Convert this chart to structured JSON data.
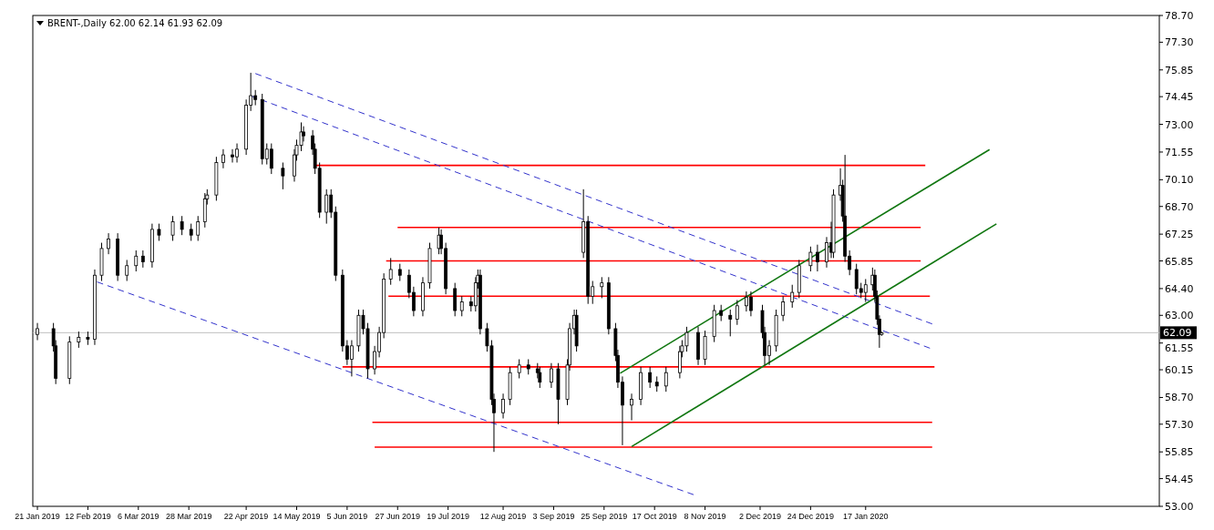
{
  "chart_data": {
    "type": "candlestick",
    "title": "BRENT-,Daily  62.00 62.14 61.93 62.09",
    "color": "#000000",
    "x": [
      "2019-01-21",
      "2019-01-28",
      "2019-01-29",
      "2019-02-04",
      "2019-02-08",
      "2019-02-12",
      "2019-02-15",
      "2019-02-18",
      "2019-02-21",
      "2019-02-25",
      "2019-03-01",
      "2019-03-05",
      "2019-03-08",
      "2019-03-12",
      "2019-03-15",
      "2019-03-21",
      "2019-03-25",
      "2019-03-29",
      "2019-04-01",
      "2019-04-04",
      "2019-04-05",
      "2019-04-09",
      "2019-04-12",
      "2019-04-16",
      "2019-04-18",
      "2019-04-22",
      "2019-04-24",
      "2019-04-26",
      "2019-04-29",
      "2019-05-01",
      "2019-05-03",
      "2019-05-08",
      "2019-05-13",
      "2019-05-14",
      "2019-05-16",
      "2019-05-17",
      "2019-05-21",
      "2019-05-22",
      "2019-05-24",
      "2019-05-27",
      "2019-05-29",
      "2019-05-31",
      "2019-06-03",
      "2019-06-05",
      "2019-06-07",
      "2019-06-10",
      "2019-06-12",
      "2019-06-14",
      "2019-06-17",
      "2019-06-19",
      "2019-06-21",
      "2019-06-24",
      "2019-06-28",
      "2019-07-02",
      "2019-07-04",
      "2019-07-08",
      "2019-07-11",
      "2019-07-15",
      "2019-07-16",
      "2019-07-18",
      "2019-07-22",
      "2019-07-25",
      "2019-07-29",
      "2019-07-31",
      "2019-08-01",
      "2019-08-02",
      "2019-08-05",
      "2019-08-07",
      "2019-08-08",
      "2019-08-12",
      "2019-08-15",
      "2019-08-19",
      "2019-08-23",
      "2019-08-27",
      "2019-08-28",
      "2019-09-02",
      "2019-09-05",
      "2019-09-09",
      "2019-09-10",
      "2019-09-12",
      "2019-09-13",
      "2019-09-16",
      "2019-09-18",
      "2019-09-20",
      "2019-09-24",
      "2019-09-27",
      "2019-09-30",
      "2019-10-01",
      "2019-10-03",
      "2019-10-07",
      "2019-10-11",
      "2019-10-15",
      "2019-10-18",
      "2019-10-22",
      "2019-10-28",
      "2019-10-29",
      "2019-10-31",
      "2019-11-05",
      "2019-11-08",
      "2019-11-12",
      "2019-11-15",
      "2019-11-19",
      "2019-11-22",
      "2019-11-26",
      "2019-11-28",
      "2019-12-03",
      "2019-12-04",
      "2019-12-06",
      "2019-12-09",
      "2019-12-12",
      "2019-12-16",
      "2019-12-19",
      "2019-12-24",
      "2019-12-27",
      "2019-12-31",
      "2020-01-02",
      "2020-01-03",
      "2020-01-06",
      "2020-01-07",
      "2020-01-08",
      "2020-01-10",
      "2020-01-13",
      "2020-01-15",
      "2020-01-17",
      "2020-01-20",
      "2020-01-21",
      "2020-01-22",
      "2020-01-23",
      "2020-01-24"
    ],
    "ohlc": [
      [
        62.0,
        62.6,
        61.7,
        62.3
      ],
      [
        62.3,
        62.6,
        61.1,
        61.4
      ],
      [
        61.4,
        61.7,
        59.4,
        59.7
      ],
      [
        59.7,
        61.9,
        59.4,
        61.6
      ],
      [
        61.6,
        62.15,
        61.3,
        61.85
      ],
      [
        61.85,
        62.15,
        61.45,
        61.75
      ],
      [
        61.75,
        65.4,
        61.45,
        65.1
      ],
      [
        65.1,
        66.8,
        64.8,
        66.5
      ],
      [
        66.5,
        67.3,
        66.2,
        67.0
      ],
      [
        67.0,
        67.3,
        64.8,
        65.1
      ],
      [
        65.1,
        65.9,
        64.8,
        65.6
      ],
      [
        65.6,
        66.4,
        65.3,
        66.1
      ],
      [
        66.1,
        66.4,
        65.5,
        65.8
      ],
      [
        65.8,
        67.8,
        65.5,
        67.5
      ],
      [
        67.5,
        67.8,
        66.9,
        67.2
      ],
      [
        67.2,
        68.2,
        66.9,
        67.9
      ],
      [
        67.9,
        68.2,
        67.2,
        67.5
      ],
      [
        67.5,
        67.8,
        66.9,
        67.2
      ],
      [
        67.2,
        68.2,
        66.9,
        67.9
      ],
      [
        67.9,
        69.4,
        67.6,
        69.1
      ],
      [
        69.1,
        69.6,
        68.8,
        69.3
      ],
      [
        69.3,
        71.3,
        69.0,
        71.0
      ],
      [
        71.0,
        71.7,
        70.7,
        71.4
      ],
      [
        71.4,
        71.7,
        71.0,
        71.3
      ],
      [
        71.3,
        72.0,
        71.0,
        71.7
      ],
      [
        71.7,
        74.3,
        71.4,
        74.0
      ],
      [
        74.0,
        75.7,
        73.7,
        74.5
      ],
      [
        74.5,
        74.8,
        74.0,
        74.3
      ],
      [
        74.3,
        74.6,
        70.9,
        71.2
      ],
      [
        71.2,
        72.0,
        70.9,
        71.7
      ],
      [
        71.7,
        72.0,
        70.4,
        70.7
      ],
      [
        70.7,
        71.0,
        69.6,
        70.3
      ],
      [
        70.3,
        71.7,
        70.0,
        71.4
      ],
      [
        71.4,
        72.2,
        71.1,
        71.9
      ],
      [
        71.9,
        73.1,
        71.6,
        72.6
      ],
      [
        72.6,
        72.9,
        72.1,
        72.4
      ],
      [
        72.4,
        72.7,
        71.4,
        71.7
      ],
      [
        71.7,
        72.0,
        70.4,
        70.7
      ],
      [
        70.7,
        71.0,
        68.1,
        68.4
      ],
      [
        68.4,
        69.6,
        67.8,
        69.3
      ],
      [
        69.3,
        69.6,
        68.1,
        68.4
      ],
      [
        68.4,
        68.7,
        64.8,
        65.1
      ],
      [
        65.1,
        65.4,
        61.1,
        61.4
      ],
      [
        61.4,
        61.7,
        60.4,
        60.7
      ],
      [
        60.7,
        61.7,
        59.8,
        61.4
      ],
      [
        61.4,
        63.3,
        61.1,
        63.0
      ],
      [
        63.0,
        63.3,
        62.0,
        62.3
      ],
      [
        62.3,
        62.6,
        59.7,
        60.2
      ],
      [
        60.2,
        61.4,
        59.9,
        61.1
      ],
      [
        61.1,
        62.4,
        60.8,
        62.1
      ],
      [
        62.1,
        65.2,
        61.8,
        64.9
      ],
      [
        64.9,
        66.0,
        64.6,
        65.4
      ],
      [
        65.4,
        65.7,
        64.8,
        65.1
      ],
      [
        65.1,
        65.4,
        63.9,
        64.2
      ],
      [
        64.2,
        64.5,
        62.95,
        63.25
      ],
      [
        63.25,
        65.0,
        62.95,
        64.7
      ],
      [
        64.7,
        66.8,
        64.4,
        66.5
      ],
      [
        66.5,
        67.6,
        66.2,
        67.2
      ],
      [
        67.2,
        67.5,
        66.2,
        66.5
      ],
      [
        66.5,
        66.8,
        64.1,
        64.4
      ],
      [
        64.4,
        64.7,
        62.95,
        63.25
      ],
      [
        63.25,
        64.0,
        62.95,
        63.7
      ],
      [
        63.7,
        64.0,
        63.2,
        63.5
      ],
      [
        63.5,
        65.0,
        63.2,
        64.7
      ],
      [
        64.7,
        65.4,
        64.4,
        65.1
      ],
      [
        65.1,
        65.4,
        62.0,
        62.3
      ],
      [
        62.3,
        62.6,
        61.1,
        61.4
      ],
      [
        61.4,
        61.7,
        58.3,
        58.6
      ],
      [
        58.6,
        58.9,
        55.85,
        57.9
      ],
      [
        57.9,
        58.9,
        57.6,
        58.6
      ],
      [
        58.6,
        60.3,
        58.3,
        60.0
      ],
      [
        60.0,
        60.7,
        59.7,
        60.4
      ],
      [
        60.4,
        60.7,
        59.9,
        60.2
      ],
      [
        60.2,
        60.5,
        59.7,
        60.0
      ],
      [
        60.0,
        60.3,
        59.2,
        59.5
      ],
      [
        59.5,
        60.5,
        59.2,
        60.2
      ],
      [
        60.2,
        60.5,
        57.3,
        58.6
      ],
      [
        58.6,
        60.7,
        58.3,
        60.4
      ],
      [
        60.4,
        62.6,
        60.1,
        62.3
      ],
      [
        62.3,
        63.3,
        62.0,
        63.0
      ],
      [
        63.0,
        63.3,
        61.1,
        61.4
      ],
      [
        66.3,
        69.6,
        66.0,
        67.9
      ],
      [
        67.9,
        68.2,
        63.6,
        64.0
      ],
      [
        64.0,
        64.8,
        63.6,
        64.5
      ],
      [
        64.5,
        65.0,
        63.9,
        64.7
      ],
      [
        64.7,
        65.0,
        62.0,
        62.3
      ],
      [
        62.3,
        62.6,
        60.6,
        60.9
      ],
      [
        60.9,
        61.2,
        59.2,
        59.5
      ],
      [
        59.5,
        59.8,
        56.2,
        58.3
      ],
      [
        58.3,
        58.9,
        57.5,
        58.6
      ],
      [
        58.6,
        60.3,
        58.3,
        60.0
      ],
      [
        60.0,
        60.3,
        59.2,
        59.5
      ],
      [
        59.5,
        59.8,
        59.0,
        59.3
      ],
      [
        59.3,
        60.3,
        59.0,
        60.0
      ],
      [
        60.0,
        61.4,
        59.7,
        61.1
      ],
      [
        61.1,
        61.7,
        60.8,
        61.4
      ],
      [
        61.4,
        62.4,
        61.1,
        62.1
      ],
      [
        62.1,
        62.4,
        60.4,
        60.7
      ],
      [
        60.7,
        62.2,
        60.4,
        61.9
      ],
      [
        61.9,
        63.55,
        61.6,
        63.25
      ],
      [
        63.25,
        63.55,
        62.7,
        63.0
      ],
      [
        63.0,
        63.3,
        61.9,
        62.8
      ],
      [
        62.8,
        63.8,
        62.5,
        63.5
      ],
      [
        63.5,
        64.25,
        63.2,
        63.95
      ],
      [
        63.95,
        64.25,
        62.95,
        63.25
      ],
      [
        63.25,
        63.55,
        61.8,
        62.1
      ],
      [
        62.1,
        62.4,
        60.4,
        60.9
      ],
      [
        60.9,
        61.7,
        60.4,
        61.4
      ],
      [
        61.4,
        63.3,
        61.1,
        63.0
      ],
      [
        63.0,
        64.0,
        62.7,
        63.7
      ],
      [
        63.7,
        64.6,
        63.4,
        64.2
      ],
      [
        64.2,
        65.9,
        63.9,
        65.6
      ],
      [
        65.6,
        66.6,
        65.3,
        66.3
      ],
      [
        66.3,
        66.7,
        65.3,
        65.8
      ],
      [
        65.8,
        67.1,
        65.5,
        66.8
      ],
      [
        66.8,
        67.9,
        66.0,
        66.3
      ],
      [
        66.3,
        69.6,
        66.0,
        69.3
      ],
      [
        69.3,
        70.7,
        69.0,
        69.8
      ],
      [
        69.8,
        70.1,
        67.9,
        68.2
      ],
      [
        68.2,
        71.4,
        65.8,
        66.1
      ],
      [
        66.1,
        66.4,
        65.1,
        65.4
      ],
      [
        65.4,
        65.7,
        64.1,
        64.4
      ],
      [
        64.4,
        64.7,
        63.9,
        64.2
      ],
      [
        64.2,
        64.9,
        63.7,
        64.6
      ],
      [
        64.6,
        65.5,
        64.3,
        65.1
      ],
      [
        65.1,
        65.4,
        63.7,
        64.0
      ],
      [
        64.0,
        64.3,
        62.5,
        62.8
      ],
      [
        62.8,
        63.0,
        61.3,
        62.0
      ],
      [
        62.0,
        62.14,
        61.93,
        62.09
      ]
    ],
    "series": [
      {
        "type": "line",
        "color": "#ff0000",
        "x": [
          "2019-05-22",
          "2020-02-12"
        ],
        "values": [
          70.85,
          70.85
        ]
      },
      {
        "type": "line",
        "color": "#ff0000",
        "x": [
          "2019-06-27",
          "2020-02-10"
        ],
        "values": [
          67.6,
          67.6
        ]
      },
      {
        "type": "line",
        "color": "#ff0000",
        "x": [
          "2019-06-22",
          "2020-02-10"
        ],
        "values": [
          65.85,
          65.85
        ]
      },
      {
        "type": "line",
        "color": "#ff0000",
        "x": [
          "2019-06-23",
          "2020-02-14"
        ],
        "values": [
          64.0,
          64.0
        ]
      },
      {
        "type": "line",
        "color": "#ff0000",
        "x": [
          "2019-06-03",
          "2020-02-16"
        ],
        "values": [
          60.3,
          60.3
        ]
      },
      {
        "type": "line",
        "color": "#ff0000",
        "x": [
          "2019-06-16",
          "2020-02-15"
        ],
        "values": [
          57.4,
          57.4
        ]
      },
      {
        "type": "line",
        "color": "#ff0000",
        "x": [
          "2019-06-17",
          "2020-02-15"
        ],
        "values": [
          56.1,
          56.1
        ]
      },
      {
        "type": "line",
        "color": "#3333cc",
        "line_style": "dashed",
        "x": [
          "2019-04-26",
          "2020-02-15"
        ],
        "values": [
          75.66,
          62.55
        ]
      },
      {
        "type": "line",
        "color": "#3333cc",
        "line_style": "dashed",
        "x": [
          "2019-04-24",
          "2020-02-14"
        ],
        "values": [
          74.49,
          61.28
        ]
      },
      {
        "type": "line",
        "color": "#3333cc",
        "line_style": "dashed",
        "x": [
          "2019-02-16",
          "2019-11-03"
        ],
        "values": [
          64.75,
          53.61
        ]
      },
      {
        "type": "line",
        "color": "#117711",
        "x": [
          "2019-10-02",
          "2020-03-11"
        ],
        "values": [
          59.97,
          71.68
        ]
      },
      {
        "type": "line",
        "color": "#117711",
        "x": [
          "2019-10-07",
          "2020-03-14"
        ],
        "values": [
          56.13,
          67.79
        ]
      }
    ],
    "ref_lines": [
      {
        "axis": "y",
        "value": 62.09,
        "label": "62.09",
        "color": "#c0c0c0"
      }
    ],
    "xlim": [
      "2019-01-19",
      "2020-05-24"
    ],
    "xticks": [
      {
        "value": "2019-01-21",
        "label": "21 Jan 2019"
      },
      {
        "value": "2019-02-12",
        "label": "12 Feb 2019"
      },
      {
        "value": "2019-03-06",
        "label": "6 Mar 2019"
      },
      {
        "value": "2019-03-28",
        "label": "28 Mar 2019"
      },
      {
        "value": "2019-04-22",
        "label": "22 Apr 2019"
      },
      {
        "value": "2019-05-14",
        "label": "14 May 2019"
      },
      {
        "value": "2019-06-05",
        "label": "5 Jun 2019"
      },
      {
        "value": "2019-06-27",
        "label": "27 Jun 2019"
      },
      {
        "value": "2019-07-19",
        "label": "19 Jul 2019"
      },
      {
        "value": "2019-08-12",
        "label": "12 Aug 2019"
      },
      {
        "value": "2019-09-03",
        "label": "3 Sep 2019"
      },
      {
        "value": "2019-09-25",
        "label": "25 Sep 2019"
      },
      {
        "value": "2019-10-17",
        "label": "17 Oct 2019"
      },
      {
        "value": "2019-11-08",
        "label": "8 Nov 2019"
      },
      {
        "value": "2019-12-02",
        "label": "2 Dec 2019"
      },
      {
        "value": "2019-12-24",
        "label": "24 Dec 2019"
      },
      {
        "value": "2020-01-17",
        "label": "17 Jan 2020"
      }
    ],
    "ylim": [
      53.0,
      78.7
    ],
    "yticks": [
      {
        "value": 78.7,
        "label": "78.70"
      },
      {
        "value": 77.3,
        "label": "77.30"
      },
      {
        "value": 75.85,
        "label": "75.85"
      },
      {
        "value": 74.45,
        "label": "74.45"
      },
      {
        "value": 73.0,
        "label": "73.00"
      },
      {
        "value": 71.55,
        "label": "71.55"
      },
      {
        "value": 70.1,
        "label": "70.10"
      },
      {
        "value": 68.7,
        "label": "68.70"
      },
      {
        "value": 67.25,
        "label": "67.25"
      },
      {
        "value": 65.85,
        "label": "65.85"
      },
      {
        "value": 64.4,
        "label": "64.40"
      },
      {
        "value": 63.0,
        "label": "63.00"
      },
      {
        "value": 61.55,
        "label": "61.55"
      },
      {
        "value": 60.15,
        "label": "60.15"
      },
      {
        "value": 58.7,
        "label": "58.70"
      },
      {
        "value": 57.3,
        "label": "57.30"
      },
      {
        "value": 55.85,
        "label": "55.85"
      },
      {
        "value": 54.45,
        "label": "54.45"
      },
      {
        "value": 53.0,
        "label": "53.00"
      }
    ]
  }
}
